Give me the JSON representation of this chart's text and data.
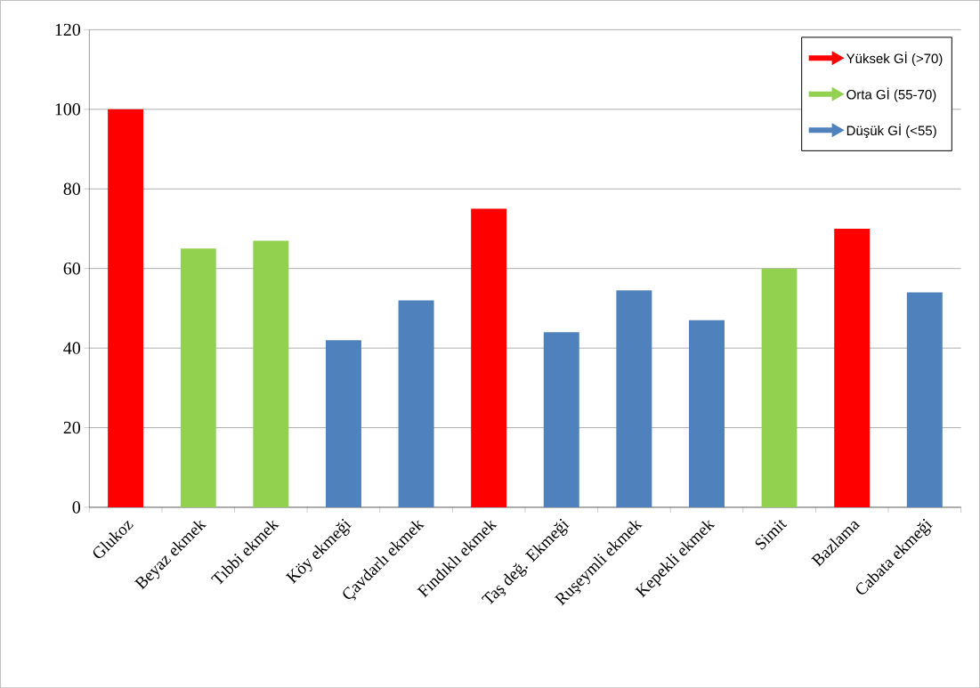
{
  "chart_data": {
    "type": "bar",
    "categories": [
      "Glukoz",
      "Beyaz ekmek",
      "Tıbbi ekmek",
      "Köy ekmeği",
      "Çavdarlı ekmek",
      "Fındıklı ekmek",
      "Taş değ. Ekmeği",
      "Ruşeymli ekmek",
      "Kepekli ekmek",
      "Simit",
      "Bazlama",
      "Cabata ekmeği"
    ],
    "series": [
      {
        "name": "Yüksek Gİ (>70)",
        "color": "#ff0000",
        "values": [
          100,
          null,
          null,
          null,
          null,
          75,
          null,
          null,
          null,
          null,
          70,
          null
        ]
      },
      {
        "name": "Orta Gİ (55-70)",
        "color": "#92d050",
        "values": [
          null,
          65,
          67,
          null,
          null,
          null,
          null,
          null,
          null,
          60,
          null,
          null
        ]
      },
      {
        "name": "Düşük Gİ (<55)",
        "color": "#4f81bd",
        "values": [
          null,
          null,
          null,
          42,
          52,
          null,
          44,
          54.5,
          47,
          null,
          null,
          54
        ]
      }
    ],
    "ylim": [
      0,
      120
    ],
    "yticks": [
      0,
      20,
      40,
      60,
      80,
      100,
      120
    ],
    "grid": "y",
    "legend": "top right"
  }
}
